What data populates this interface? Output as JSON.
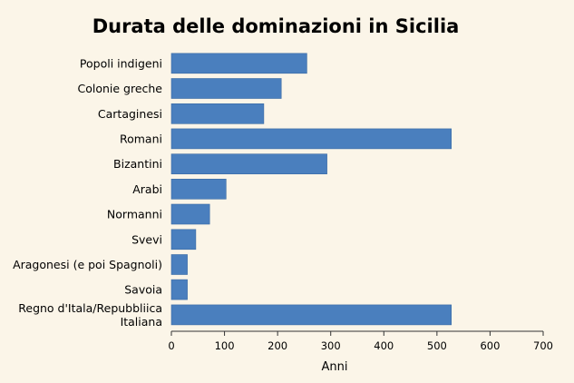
{
  "chart_data": {
    "type": "bar",
    "orientation": "horizontal",
    "title": "Durata delle dominazioni in Sicilia",
    "xlabel": "Anni",
    "ylabel": "",
    "xlim": [
      0,
      700
    ],
    "x_ticks": [
      "0",
      "100",
      "200",
      "300",
      "400",
      "500",
      "600",
      "700"
    ],
    "grid": false,
    "legend": "none",
    "bar_color": "#4a7fbe",
    "categories": [
      "Popoli indigeni",
      "Colonie greche",
      "Cartaginesi",
      "Romani",
      "Bizantini",
      "Arabi",
      "Normanni",
      "Svevi",
      "Aragonesi (e poi Spagnoli)",
      "Savoia",
      "Regno d'Itala/Repubbliica Italiana"
    ],
    "category_lines": [
      [
        "Popoli indigeni"
      ],
      [
        "Colonie greche"
      ],
      [
        "Cartaginesi"
      ],
      [
        "Romani"
      ],
      [
        "Bizantini"
      ],
      [
        "Arabi"
      ],
      [
        "Normanni"
      ],
      [
        "Svevi"
      ],
      [
        "Aragonesi (e poi Spagnoli)"
      ],
      [
        "Savoia"
      ],
      [
        "Regno d'Itala/Repubbliica",
        "Italiana"
      ]
    ],
    "values": [
      255,
      207,
      174,
      527,
      293,
      103,
      72,
      46,
      30,
      30,
      527
    ]
  }
}
